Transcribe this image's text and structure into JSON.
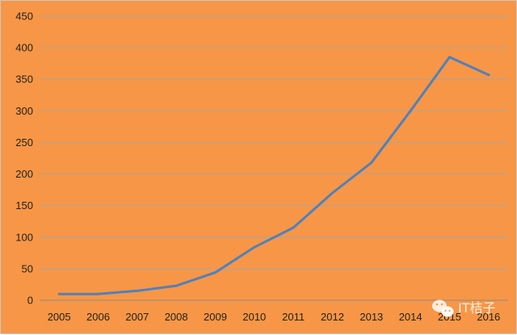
{
  "chart_data": {
    "type": "line",
    "title": "",
    "xlabel": "",
    "ylabel": "",
    "categories": [
      "2005",
      "2006",
      "2007",
      "2008",
      "2009",
      "2010",
      "2011",
      "2012",
      "2013",
      "2014",
      "2015",
      "2016"
    ],
    "series": [
      {
        "values": [
          10,
          10,
          15,
          23,
          44,
          84,
          115,
          170,
          218,
          300,
          385,
          357
        ]
      }
    ],
    "ylim": [
      0,
      450
    ],
    "yticks": [
      0,
      50,
      100,
      150,
      200,
      250,
      300,
      350,
      400,
      450
    ],
    "grid": true,
    "legend": "none",
    "colors": {
      "background": "#f79646",
      "line": "#4f81bd",
      "grid": "#a6a6a6",
      "axis": "#8c8c8c"
    }
  },
  "watermark": {
    "icon": "wechat-icon",
    "text": "IT桔子"
  }
}
